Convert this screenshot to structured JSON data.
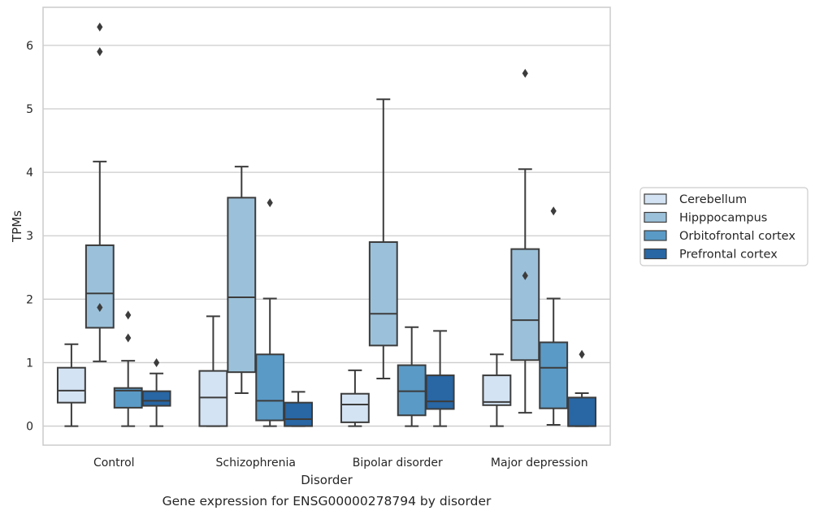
{
  "caption": "Gene expression for ENSG00000278794 by disorder",
  "chart_data": {
    "type": "box",
    "title": "",
    "xlabel": "Disorder",
    "ylabel": "TPMs",
    "ylim": [
      -0.3,
      6.6
    ],
    "yticks": [
      0,
      1,
      2,
      3,
      4,
      5,
      6
    ],
    "grid": "horizontal",
    "legend_position": "right",
    "categories": [
      "Control",
      "Schizophrenia",
      "Bipolar disorder",
      "Major depression"
    ],
    "series": [
      {
        "name": "Cerebellum",
        "color": "#d4e3f3",
        "boxes": [
          {
            "whislo": 0.0,
            "q1": 0.37,
            "med": 0.56,
            "q3": 0.92,
            "whishi": 1.29,
            "fliers": []
          },
          {
            "whislo": 0.0,
            "q1": 0.0,
            "med": 0.45,
            "q3": 0.87,
            "whishi": 1.73,
            "fliers": []
          },
          {
            "whislo": 0.0,
            "q1": 0.06,
            "med": 0.34,
            "q3": 0.51,
            "whishi": 0.88,
            "fliers": []
          },
          {
            "whislo": 0.0,
            "q1": 0.33,
            "med": 0.38,
            "q3": 0.8,
            "whishi": 1.13,
            "fliers": []
          }
        ]
      },
      {
        "name": "Hipppocampus",
        "color": "#9bc1da",
        "boxes": [
          {
            "whislo": 1.02,
            "q1": 1.55,
            "med": 2.09,
            "q3": 2.85,
            "whishi": 4.17,
            "fliers": [
              1.87,
              5.9,
              6.29
            ]
          },
          {
            "whislo": 0.52,
            "q1": 0.85,
            "med": 2.03,
            "q3": 3.6,
            "whishi": 4.09,
            "fliers": []
          },
          {
            "whislo": 0.75,
            "q1": 1.27,
            "med": 1.77,
            "q3": 2.9,
            "whishi": 5.15,
            "fliers": []
          },
          {
            "whislo": 0.21,
            "q1": 1.04,
            "med": 1.67,
            "q3": 2.79,
            "whishi": 4.05,
            "fliers": [
              2.37,
              5.56
            ]
          }
        ]
      },
      {
        "name": "Orbitofrontal cortex",
        "color": "#5a9ac6",
        "boxes": [
          {
            "whislo": 0.0,
            "q1": 0.29,
            "med": 0.56,
            "q3": 0.6,
            "whishi": 1.03,
            "fliers": [
              1.39,
              1.75
            ]
          },
          {
            "whislo": 0.0,
            "q1": 0.09,
            "med": 0.4,
            "q3": 1.13,
            "whishi": 2.01,
            "fliers": [
              3.52
            ]
          },
          {
            "whislo": 0.0,
            "q1": 0.17,
            "med": 0.55,
            "q3": 0.96,
            "whishi": 1.56,
            "fliers": []
          },
          {
            "whislo": 0.02,
            "q1": 0.28,
            "med": 0.92,
            "q3": 1.32,
            "whishi": 2.01,
            "fliers": [
              3.39
            ]
          }
        ]
      },
      {
        "name": "Prefrontal cortex",
        "color": "#2866a4",
        "boxes": [
          {
            "whislo": 0.0,
            "q1": 0.32,
            "med": 0.4,
            "q3": 0.55,
            "whishi": 0.83,
            "fliers": [
              1.0
            ]
          },
          {
            "whislo": 0.0,
            "q1": 0.0,
            "med": 0.11,
            "q3": 0.37,
            "whishi": 0.54,
            "fliers": []
          },
          {
            "whislo": 0.0,
            "q1": 0.27,
            "med": 0.39,
            "q3": 0.8,
            "whishi": 1.5,
            "fliers": []
          },
          {
            "whislo": 0.0,
            "q1": 0.0,
            "med": 0.0,
            "q3": 0.45,
            "whishi": 0.52,
            "fliers": [
              1.13
            ]
          }
        ]
      }
    ]
  }
}
